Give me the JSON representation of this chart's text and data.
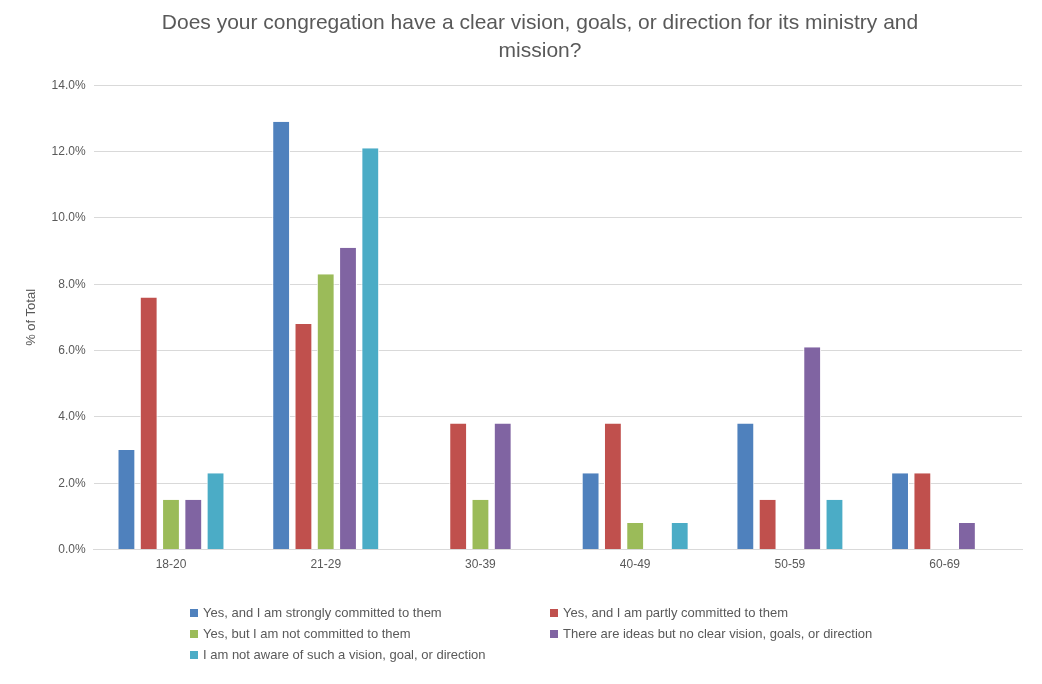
{
  "chart_data": {
    "type": "bar",
    "title": "Does your congregation have a clear vision, goals, or direction for its ministry and mission?",
    "ylabel": "% of Total",
    "categories": [
      "18-20",
      "21-29",
      "30-39",
      "40-49",
      "50-59",
      "60-69"
    ],
    "series": [
      {
        "name": "Yes, and I am strongly committed to them",
        "color": "#4f81bd",
        "values": [
          3.0,
          12.9,
          0,
          2.3,
          3.8,
          2.3
        ]
      },
      {
        "name": "Yes, and I am partly committed to them",
        "color": "#c0504d",
        "values": [
          7.6,
          6.8,
          3.8,
          3.8,
          1.5,
          2.3
        ]
      },
      {
        "name": "Yes, but I am not committed to them",
        "color": "#9bbb59",
        "values": [
          1.5,
          8.3,
          1.5,
          0.8,
          0,
          0
        ]
      },
      {
        "name": "There are ideas but no clear vision, goals, or direction",
        "color": "#8064a2",
        "values": [
          1.5,
          9.1,
          3.8,
          0,
          6.1,
          0.8
        ]
      },
      {
        "name": "I am not aware of such a vision, goal, or direction",
        "color": "#4bacc6",
        "values": [
          2.3,
          12.1,
          0,
          0.8,
          1.5,
          0
        ]
      }
    ],
    "ylim": [
      0,
      14
    ],
    "yticks": [
      {
        "value": 0,
        "label": "0.0%"
      },
      {
        "value": 2,
        "label": "2.0%"
      },
      {
        "value": 4,
        "label": "4.0%"
      },
      {
        "value": 6,
        "label": "6.0%"
      },
      {
        "value": 8,
        "label": "8.0%"
      },
      {
        "value": 10,
        "label": "10.0%"
      },
      {
        "value": 12,
        "label": "12.0%"
      },
      {
        "value": 14,
        "label": "14.0%"
      }
    ],
    "grid": "y",
    "legend": "bottom"
  }
}
